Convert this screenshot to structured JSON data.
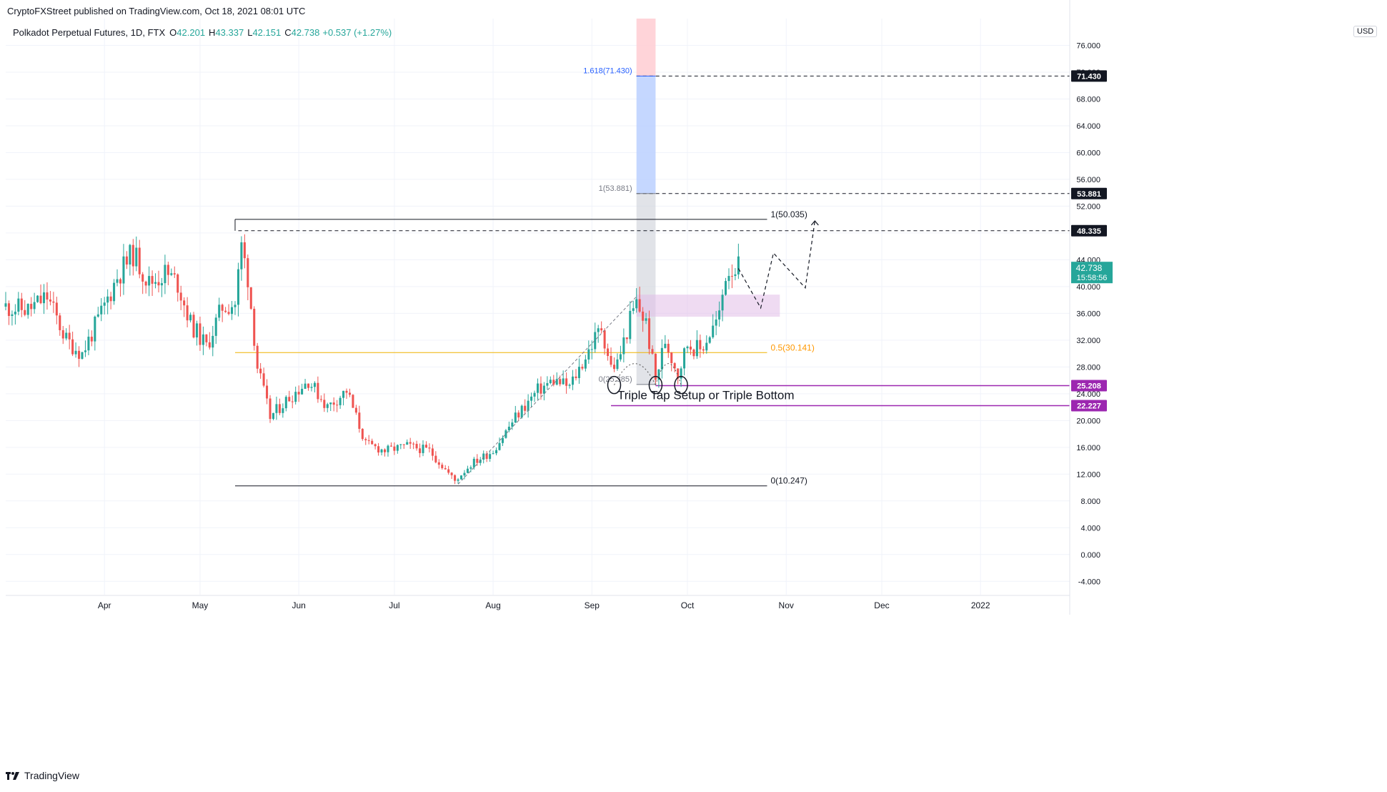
{
  "header": {
    "publisher": "CryptoFXStreet published on TradingView.com, Oct 18, 2021 08:01 UTC",
    "symbol": "Polkadot Perpetual Futures, 1D, FTX",
    "ohlc": [
      {
        "label": "O",
        "value": "42.201"
      },
      {
        "label": "H",
        "value": "43.337"
      },
      {
        "label": "L",
        "value": "42.151"
      },
      {
        "label": "C",
        "value": "42.738"
      }
    ],
    "change": "+0.537 (+1.27%)"
  },
  "footer": {
    "brand": "TradingView"
  },
  "colors": {
    "up": "#26a69a",
    "down": "#ef5350",
    "grid": "#f0f3fa",
    "text": "#131722",
    "fib_blue": "#2962ff",
    "fib_orange": "#ff9800",
    "support": "#9c27b0",
    "zone": "#e1bee7"
  },
  "chart_data": {
    "type": "candlestick",
    "currency": "USD",
    "y_range": [
      -6,
      80
    ],
    "x_range": [
      "2021-03-01",
      "2022-01-29"
    ],
    "y_ticks": [
      "76.000",
      "72.000",
      "68.000",
      "64.000",
      "60.000",
      "56.000",
      "52.000",
      "48.000",
      "44.000",
      "40.000",
      "36.000",
      "32.000",
      "28.000",
      "24.000",
      "20.000",
      "16.000",
      "12.000",
      "8.000",
      "4.000",
      "0.000",
      "-4.000"
    ],
    "x_ticks": [
      {
        "label": "Apr",
        "date": "2021-04-01"
      },
      {
        "label": "May",
        "date": "2021-05-01"
      },
      {
        "label": "Jun",
        "date": "2021-06-01"
      },
      {
        "label": "Jul",
        "date": "2021-07-01"
      },
      {
        "label": "Aug",
        "date": "2021-08-01"
      },
      {
        "label": "Sep",
        "date": "2021-09-01"
      },
      {
        "label": "Oct",
        "date": "2021-10-01"
      },
      {
        "label": "Nov",
        "date": "2021-11-01"
      },
      {
        "label": "Dec",
        "date": "2021-12-01"
      },
      {
        "label": "2022",
        "date": "2022-01-01"
      }
    ],
    "price_labels": [
      {
        "value": 71.43,
        "text": "71.430",
        "style": "dark"
      },
      {
        "value": 53.881,
        "text": "53.881",
        "style": "dark"
      },
      {
        "value": 48.335,
        "text": "48.335",
        "style": "dark"
      },
      {
        "value": 25.208,
        "text": "25.208",
        "style": "purple"
      },
      {
        "value": 22.227,
        "text": "22.227",
        "style": "purple"
      }
    ],
    "last_price": {
      "value": 42.738,
      "text": "42.738",
      "countdown": "15:58:56"
    },
    "fib_retracement": {
      "high": {
        "value": 50.035,
        "label": "1(50.035)"
      },
      "mid": {
        "value": 30.141,
        "label": "0.5(30.141)"
      },
      "low": {
        "value": 10.247,
        "label": "0(10.247)"
      },
      "start_date": "2021-05-12",
      "end_date": "2021-10-26"
    },
    "fib_extension": {
      "levels": [
        {
          "value": 71.43,
          "label": "1.618(71.430)"
        },
        {
          "value": 53.881,
          "label": "1(53.881)"
        },
        {
          "value": 25.385,
          "label": "0(25.385)"
        }
      ],
      "start_date": "2021-09-15",
      "end_date": "2021-09-21"
    },
    "horizontal_lines": [
      {
        "value": 71.43,
        "style": "dashed",
        "from": "2021-09-15"
      },
      {
        "value": 53.881,
        "style": "dashed",
        "from": "2021-09-15"
      },
      {
        "value": 48.335,
        "style": "dashed",
        "from": "2021-05-13"
      },
      {
        "value": 25.208,
        "style": "purple",
        "from": "2021-09-21"
      },
      {
        "value": 22.227,
        "style": "purple",
        "from": "2021-09-07"
      }
    ],
    "zone": {
      "top": 38.8,
      "bottom": 35.5,
      "from": "2021-09-15",
      "to": "2021-10-30"
    },
    "annotation": {
      "text": "Triple Tap Setup or Triple Bottom",
      "date": "2021-09-09",
      "value": 23.2
    },
    "bottoms": [
      {
        "date": "2021-09-08",
        "value": 25.3
      },
      {
        "date": "2021-09-21",
        "value": 25.3
      },
      {
        "date": "2021-09-29",
        "value": 25.3
      }
    ],
    "projection": [
      {
        "date": "2021-10-17",
        "value": 42.7
      },
      {
        "date": "2021-10-24",
        "value": 36.8
      },
      {
        "date": "2021-10-28",
        "value": 45.0
      },
      {
        "date": "2021-11-07",
        "value": 39.8
      },
      {
        "date": "2021-11-10",
        "value": 49.8
      }
    ],
    "key_points": [
      {
        "date": "2021-03-01",
        "close": 37.0
      },
      {
        "date": "2021-03-08",
        "close": 36.5
      },
      {
        "date": "2021-03-14",
        "close": 38.5
      },
      {
        "date": "2021-03-20",
        "close": 32.0
      },
      {
        "date": "2021-03-25",
        "close": 30.0
      },
      {
        "date": "2021-03-31",
        "close": 36.0
      },
      {
        "date": "2021-04-05",
        "close": 41.5
      },
      {
        "date": "2021-04-10",
        "close": 45.0
      },
      {
        "date": "2021-04-15",
        "close": 40.5
      },
      {
        "date": "2021-04-20",
        "close": 42.0
      },
      {
        "date": "2021-04-24",
        "close": 40.5
      },
      {
        "date": "2021-04-28",
        "close": 34.5
      },
      {
        "date": "2021-05-03",
        "close": 31.0
      },
      {
        "date": "2021-05-08",
        "close": 37.0
      },
      {
        "date": "2021-05-12",
        "close": 37.5
      },
      {
        "date": "2021-05-14",
        "close": 46.0
      },
      {
        "date": "2021-05-16",
        "close": 41.5
      },
      {
        "date": "2021-05-19",
        "close": 28.0
      },
      {
        "date": "2021-05-23",
        "close": 20.5
      },
      {
        "date": "2021-05-28",
        "close": 23.0
      },
      {
        "date": "2021-06-04",
        "close": 26.0
      },
      {
        "date": "2021-06-10",
        "close": 22.0
      },
      {
        "date": "2021-06-16",
        "close": 24.5
      },
      {
        "date": "2021-06-22",
        "close": 16.5
      },
      {
        "date": "2021-06-28",
        "close": 15.5
      },
      {
        "date": "2021-07-05",
        "close": 16.2
      },
      {
        "date": "2021-07-12",
        "close": 15.5
      },
      {
        "date": "2021-07-20",
        "close": 11.0
      },
      {
        "date": "2021-07-25",
        "close": 13.5
      },
      {
        "date": "2021-08-01",
        "close": 15.5
      },
      {
        "date": "2021-08-08",
        "close": 20.5
      },
      {
        "date": "2021-08-15",
        "close": 24.5
      },
      {
        "date": "2021-08-20",
        "close": 26.0
      },
      {
        "date": "2021-08-25",
        "close": 25.0
      },
      {
        "date": "2021-08-31",
        "close": 30.5
      },
      {
        "date": "2021-09-04",
        "close": 34.0
      },
      {
        "date": "2021-09-07",
        "close": 28.0
      },
      {
        "date": "2021-09-09",
        "close": 28.5
      },
      {
        "date": "2021-09-13",
        "close": 35.0
      },
      {
        "date": "2021-09-15",
        "close": 37.5
      },
      {
        "date": "2021-09-18",
        "close": 34.5
      },
      {
        "date": "2021-09-21",
        "close": 26.0
      },
      {
        "date": "2021-09-24",
        "close": 32.0
      },
      {
        "date": "2021-09-28",
        "close": 27.0
      },
      {
        "date": "2021-10-01",
        "close": 31.5
      },
      {
        "date": "2021-10-05",
        "close": 30.5
      },
      {
        "date": "2021-10-08",
        "close": 33.0
      },
      {
        "date": "2021-10-11",
        "close": 35.5
      },
      {
        "date": "2021-10-13",
        "close": 42.0
      },
      {
        "date": "2021-10-15",
        "close": 43.0
      },
      {
        "date": "2021-10-17",
        "close": 42.738
      }
    ]
  }
}
